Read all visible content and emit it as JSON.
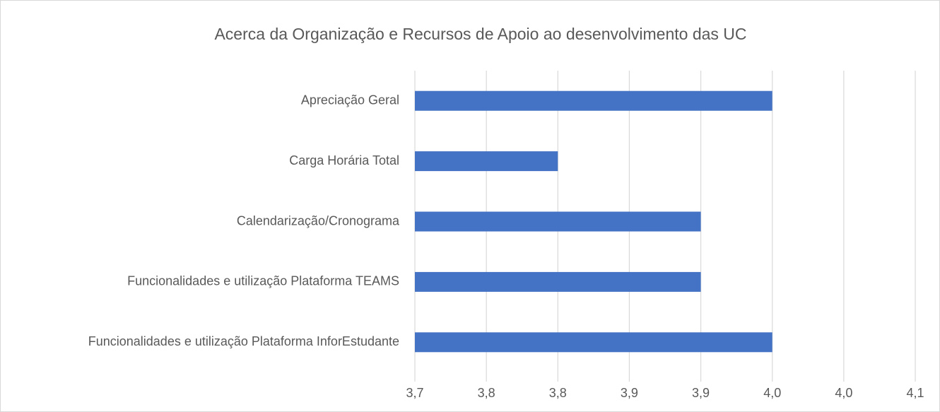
{
  "chart_data": {
    "type": "bar",
    "orientation": "horizontal",
    "title": "Acerca da Organização e Recursos de Apoio ao desenvolvimento das UC",
    "categories": [
      "Apreciação Geral",
      "Carga Horária Total",
      "Calendarização/Cronograma",
      "Funcionalidades e utilização Plataforma TEAMS",
      "Funcionalidades e utilização Plataforma InforEstudante"
    ],
    "values": [
      3.95,
      3.8,
      3.9,
      3.9,
      3.95
    ],
    "color": "#4472c4",
    "xlim": [
      3.7,
      4.05
    ],
    "xticks": [
      {
        "value": 3.7,
        "label": "3,7"
      },
      {
        "value": 3.75,
        "label": "3,8"
      },
      {
        "value": 3.8,
        "label": "3,8"
      },
      {
        "value": 3.85,
        "label": "3,9"
      },
      {
        "value": 3.9,
        "label": "3,9"
      },
      {
        "value": 3.95,
        "label": "4,0"
      },
      {
        "value": 4.0,
        "label": "4,0"
      },
      {
        "value": 4.05,
        "label": "4,1"
      }
    ],
    "grid": true
  }
}
